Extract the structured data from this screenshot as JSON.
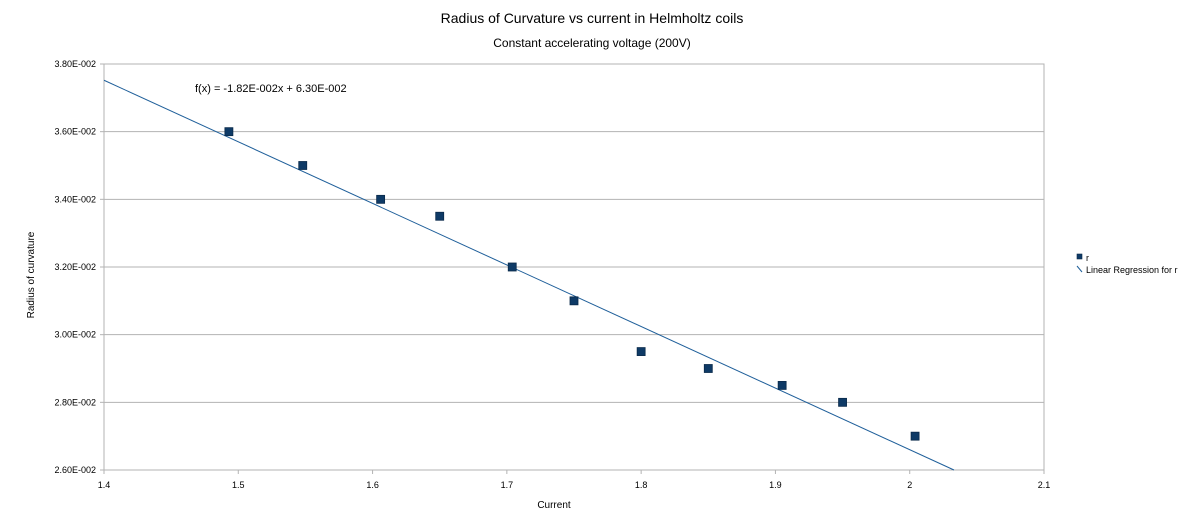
{
  "chart_data": {
    "type": "scatter",
    "title": "Radius of Curvature vs current in Helmholtz coils",
    "subtitle": "Constant accelerating voltage (200V)",
    "xlabel": "Current",
    "ylabel": "Radius of curvature",
    "xlim": [
      1.4,
      2.1
    ],
    "ylim": [
      0.026,
      0.038
    ],
    "x_ticks": [
      1.4,
      1.5,
      1.6,
      1.7,
      1.8,
      1.9,
      2.0,
      2.1
    ],
    "x_tick_labels": [
      "1.4",
      "1.5",
      "1.6",
      "1.7",
      "1.8",
      "1.9",
      "2",
      "2.1"
    ],
    "y_ticks": [
      0.026,
      0.028,
      0.03,
      0.032,
      0.034,
      0.036,
      0.038
    ],
    "y_tick_labels": [
      "2.60E-002",
      "2.80E-002",
      "3.00E-002",
      "3.20E-002",
      "3.40E-002",
      "3.60E-002",
      "3.80E-002"
    ],
    "grid": "horizontal",
    "legend_position": "right",
    "series": [
      {
        "name": "r",
        "color": "#0e3a66",
        "marker": "square",
        "x": [
          1.493,
          1.548,
          1.606,
          1.65,
          1.704,
          1.75,
          1.8,
          1.85,
          1.905,
          1.95,
          2.004
        ],
        "y": [
          0.036,
          0.035,
          0.034,
          0.0335,
          0.032,
          0.031,
          0.0295,
          0.029,
          0.0285,
          0.028,
          0.027
        ]
      }
    ],
    "regression": {
      "name": "Linear Regression for r",
      "color": "#1f5f9a",
      "slope": -0.0182,
      "intercept": 0.063,
      "equation": "f(x) = -1.82E-002x + 6.30E-002"
    }
  }
}
